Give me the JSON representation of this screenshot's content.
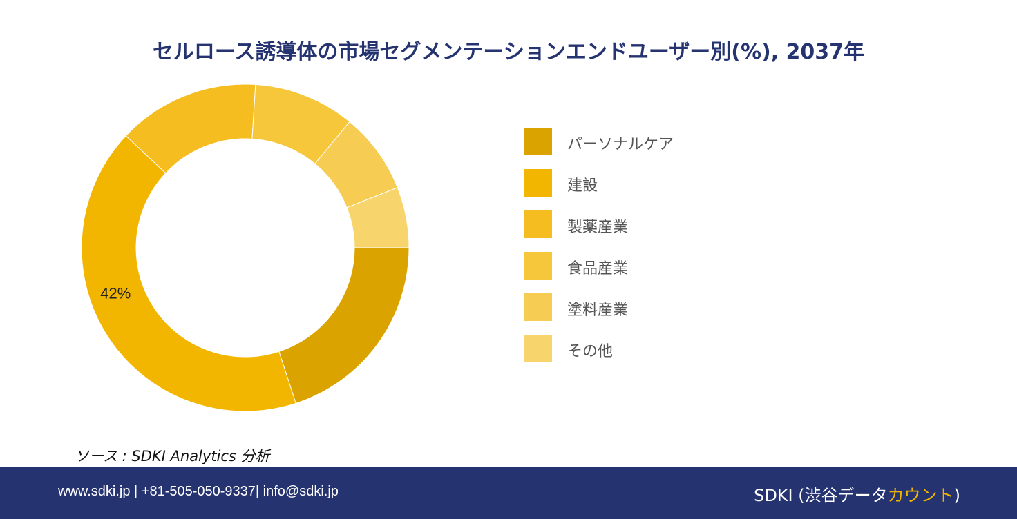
{
  "title": "セルロース誘導体の市場セグメンテーションエンドユーザー別(%), 2037年",
  "source": "ソース : SDKI Analytics 分析",
  "footer": {
    "contact": "www.sdki.jp | +81-505-050-9337| info@sdki.jp",
    "brand_prefix": "SDKI (渋谷データ",
    "brand_accent": "カウント",
    "brand_suffix": ")"
  },
  "colors": {
    "title": "#253370",
    "footer_bg": "#253370",
    "accent": "#f3b600"
  },
  "chart_data": {
    "type": "donut",
    "title": "セルロース誘導体の市場セグメンテーションエンドユーザー別(%), 2037年",
    "legend_position": "right",
    "start": "3 o'clock, clockwise",
    "series": [
      {
        "name": "パーソナルケア",
        "value": 20,
        "color": "#daa300",
        "label": ""
      },
      {
        "name": "建設",
        "value": 42,
        "color": "#f3b600",
        "label": "42%"
      },
      {
        "name": "製薬産業",
        "value": 14,
        "color": "#f5bd1f",
        "label": ""
      },
      {
        "name": "食品産業",
        "value": 10,
        "color": "#f6c63b",
        "label": ""
      },
      {
        "name": "塗料産業",
        "value": 8,
        "color": "#f7cc53",
        "label": ""
      },
      {
        "name": "その他",
        "value": 6,
        "color": "#f8d56c",
        "label": ""
      }
    ]
  }
}
